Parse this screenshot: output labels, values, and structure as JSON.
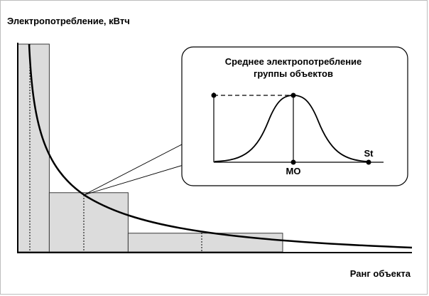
{
  "y_axis_title": "Электропотребление, кВтч",
  "x_axis_title": "Ранг объекта",
  "inset": {
    "title_line1": "Среднее электропотребление",
    "title_line2": "группы объектов",
    "mo_label": "МО",
    "st_label": "St"
  },
  "bars": [
    {
      "start": 0.0,
      "end": 1.0,
      "height": 1.0
    },
    {
      "start": 1.0,
      "end": 3.5,
      "height": 0.285
    },
    {
      "start": 3.5,
      "end": 8.4,
      "height": 0.09
    }
  ],
  "rank_domain": [
    0,
    12.5
  ],
  "colors": {
    "bar_fill": "#dcdcdc",
    "bar_stroke": "#3a3a3a",
    "curve": "#000000",
    "inset_border": "#000000"
  }
}
